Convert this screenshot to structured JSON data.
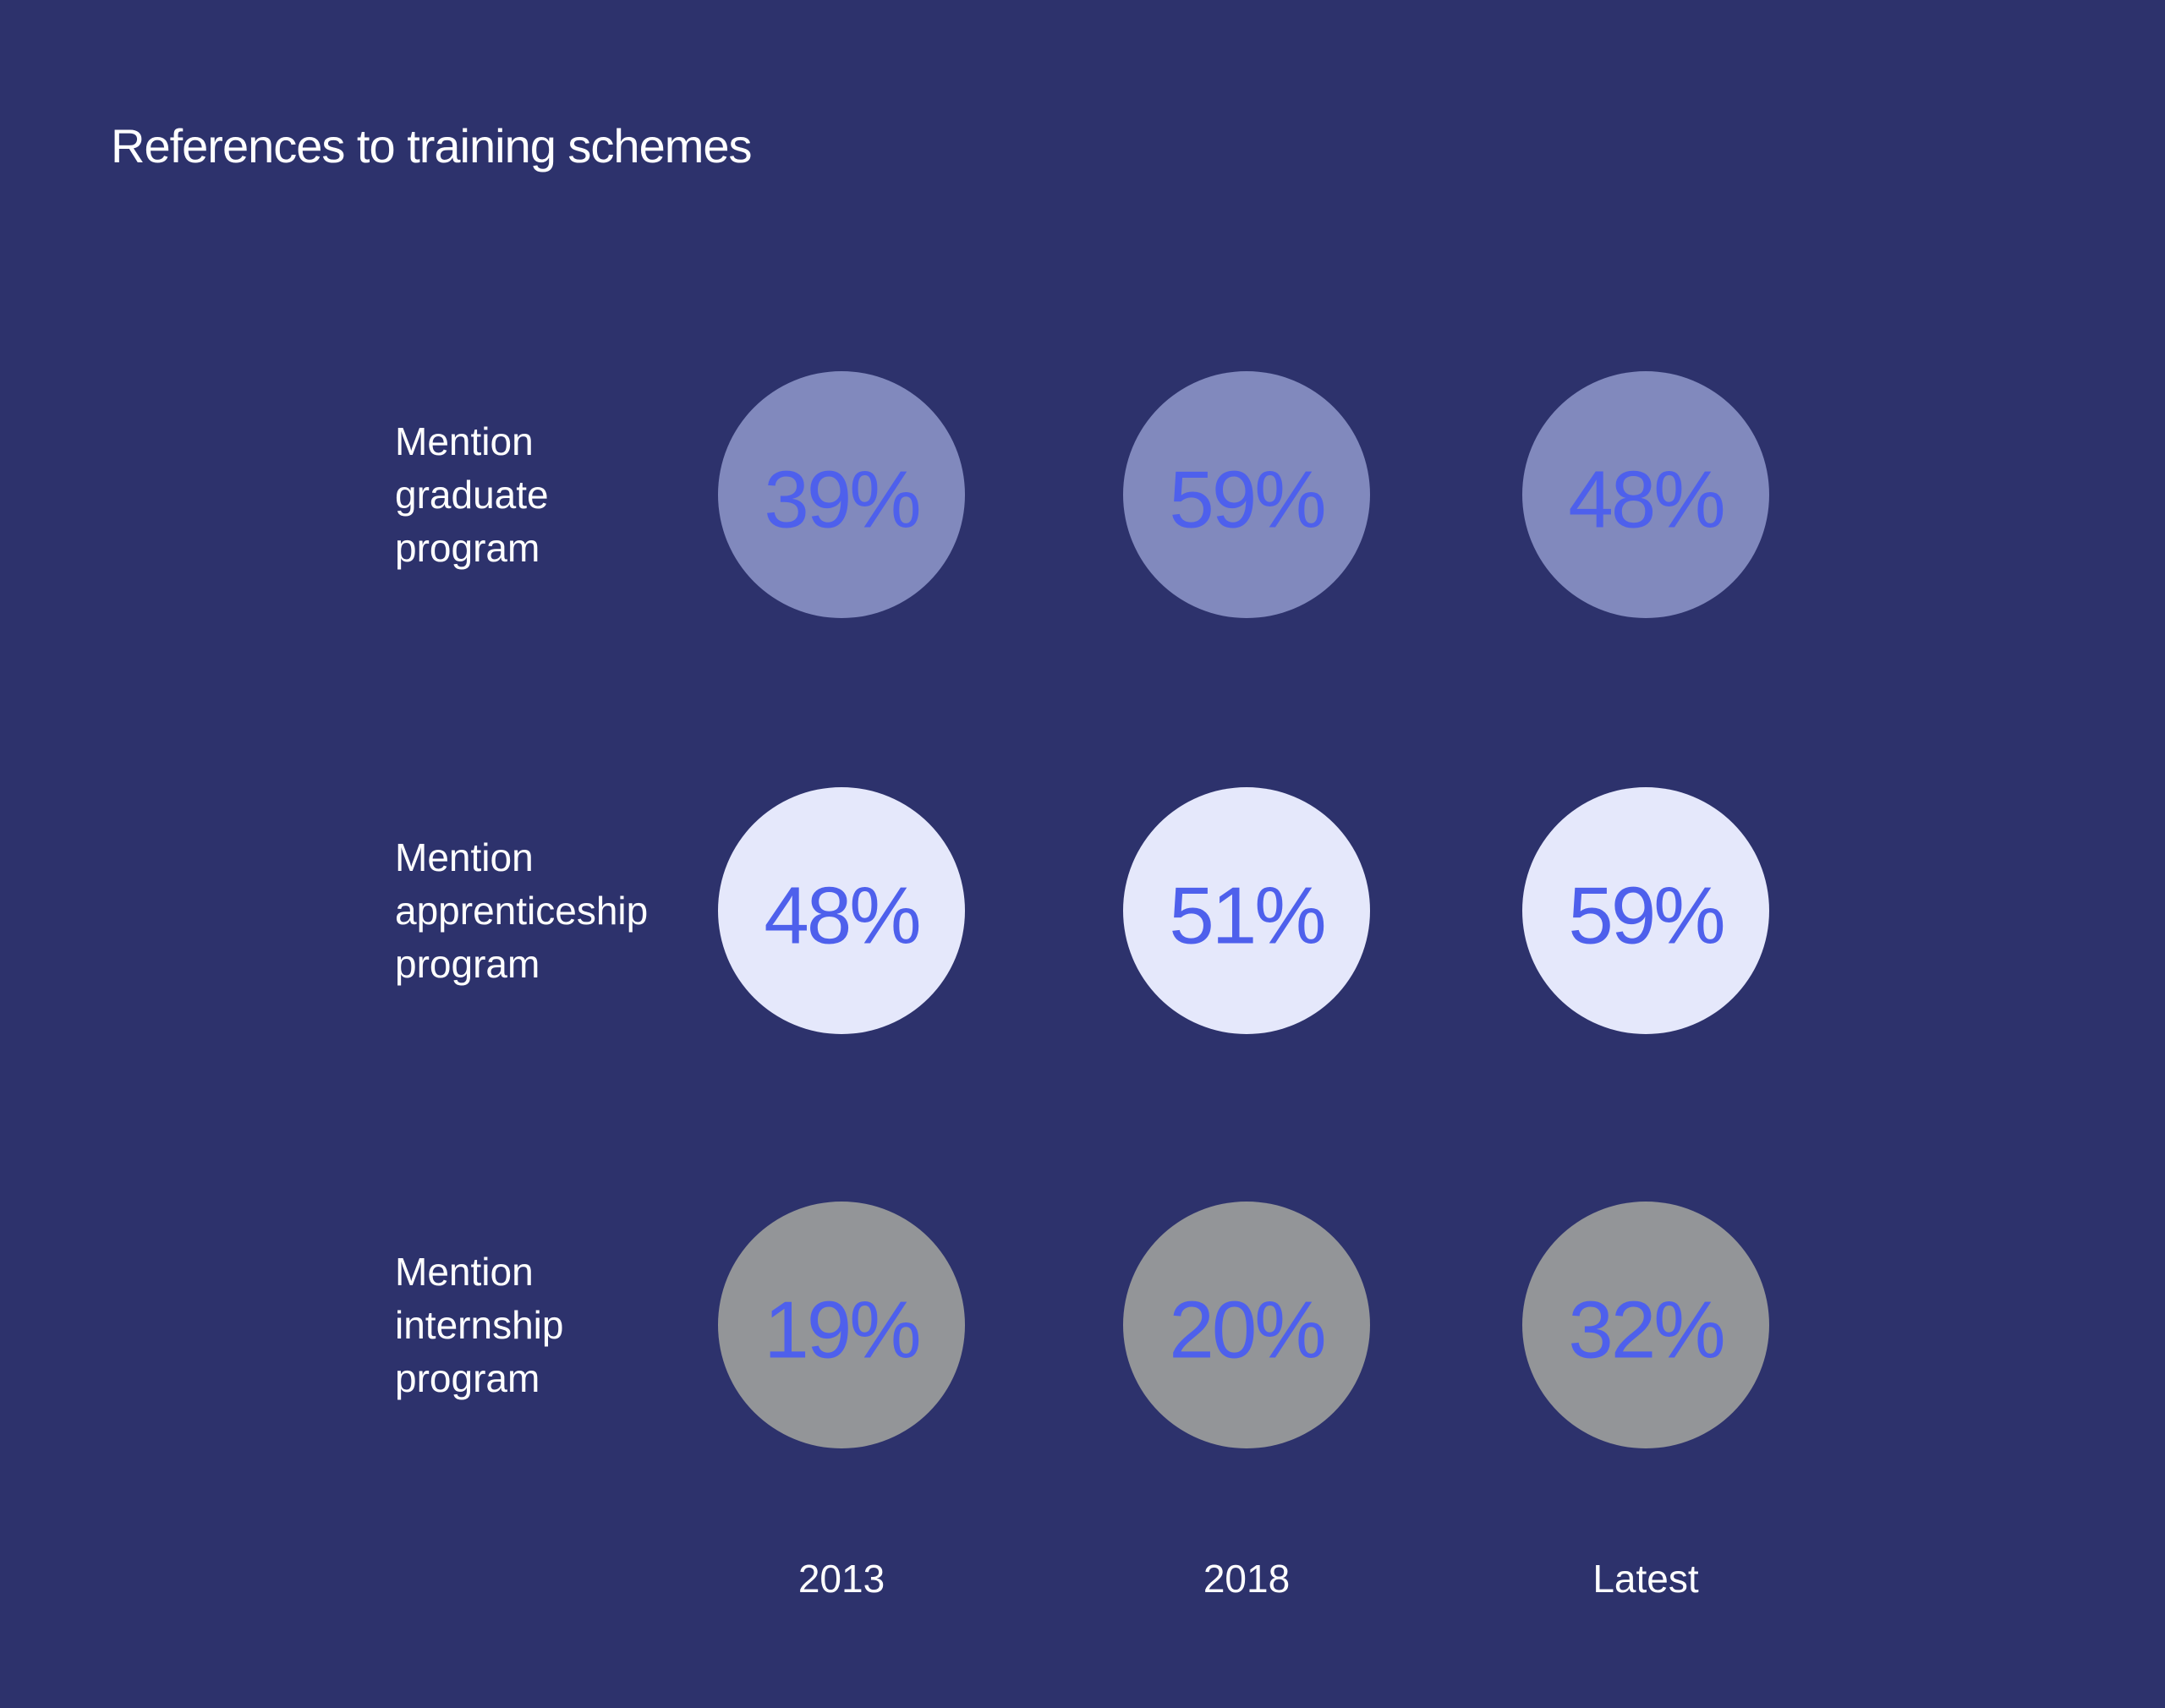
{
  "chart_data": {
    "type": "table",
    "title": "References to training schemes",
    "columns": [
      "2013",
      "2018",
      "Latest"
    ],
    "rows": [
      {
        "label": "Mention graduate program",
        "label_lines": [
          "Mention",
          "graduate",
          "program"
        ],
        "values": [
          39,
          59,
          48
        ],
        "fill": "#8189bd"
      },
      {
        "label": "Mention apprenticeship program",
        "label_lines": [
          "Mention",
          "apprenticeship",
          "program"
        ],
        "values": [
          48,
          51,
          59
        ],
        "fill": "#e5e8fb"
      },
      {
        "label": "Mention internship program",
        "label_lines": [
          "Mention",
          "internship",
          "program"
        ],
        "values": [
          19,
          20,
          32
        ],
        "fill": "#939598"
      }
    ],
    "value_suffix": "%"
  },
  "colors": {
    "background": "#2d326c",
    "text": "#ffffff",
    "value_text": "#4e60ec"
  }
}
